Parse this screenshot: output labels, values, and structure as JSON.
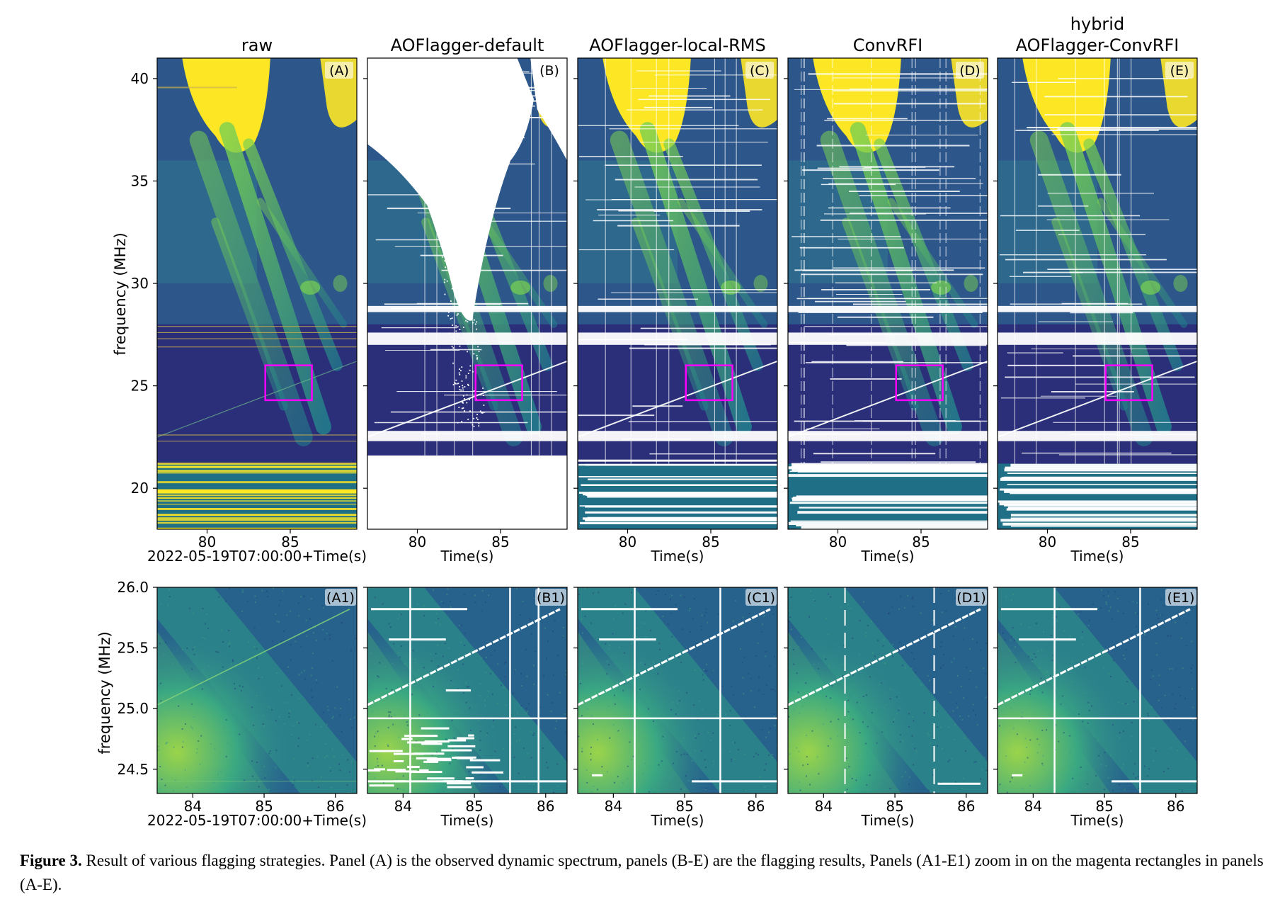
{
  "figure": {
    "top_row": {
      "ylabel": "frequency (MHz)",
      "y_ticks": [
        "40",
        "35",
        "30",
        "25",
        "20"
      ],
      "x_ticks": [
        "80",
        "85"
      ],
      "x_range": [
        77,
        89
      ],
      "y_range": [
        18,
        41
      ],
      "highlight_box": {
        "x": [
          83.5,
          86.3
        ],
        "y": [
          24.3,
          26.0
        ]
      },
      "panels": [
        {
          "title": "raw",
          "label": "(A)",
          "xlabel": "2022-05-19T07:00:00+Time(s)"
        },
        {
          "title": "AOFlagger-default",
          "label": "(B)",
          "xlabel": "Time(s)"
        },
        {
          "title": "AOFlagger-local-RMS",
          "label": "(C)",
          "xlabel": "Time(s)"
        },
        {
          "title": "ConvRFI",
          "label": "(D)",
          "xlabel": "Time(s)"
        },
        {
          "title_line1": "hybrid",
          "title": "AOFlagger-ConvRFI",
          "label": "(E)",
          "xlabel": "Time(s)"
        }
      ]
    },
    "bottom_row": {
      "ylabel": "frequency (MHz)",
      "y_ticks": [
        "26.0",
        "25.5",
        "25.0",
        "24.5"
      ],
      "x_ticks": [
        "84",
        "85",
        "86"
      ],
      "x_range": [
        83.5,
        86.3
      ],
      "y_range": [
        24.3,
        26.0
      ],
      "panels": [
        {
          "label": "(A1)",
          "xlabel": "2022-05-19T07:00:00+Time(s)"
        },
        {
          "label": "(B1)",
          "xlabel": "Time(s)"
        },
        {
          "label": "(C1)",
          "xlabel": "Time(s)"
        },
        {
          "label": "(D1)",
          "xlabel": "Time(s)"
        },
        {
          "label": "(E1)",
          "xlabel": "Time(s)"
        }
      ]
    },
    "colors": {
      "low": "#2b2f7a",
      "mid": "#22848e",
      "high": "#7ad151",
      "max": "#fde725",
      "box": "#ff00ff",
      "flag": "#ffffff"
    }
  },
  "caption": {
    "label": "Figure 3.",
    "text": " Result of various flagging strategies. Panel (A) is the observed dynamic spectrum, panels (B-E) are the flagging results, Panels (A1-E1) zoom in on the magenta rectangles in panels (A-E)."
  }
}
